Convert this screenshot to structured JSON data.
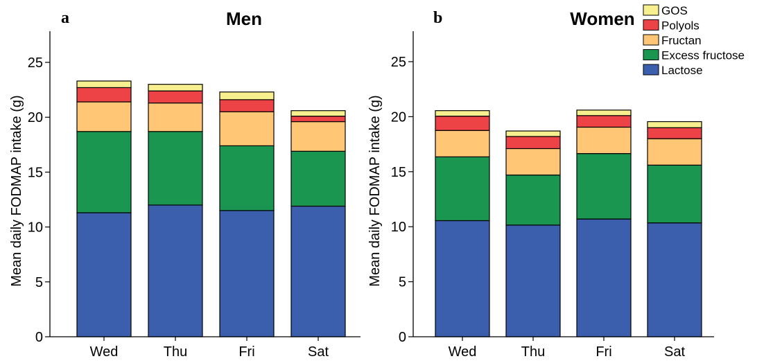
{
  "chart_data": [
    {
      "type": "bar",
      "stacked": true,
      "panel_label": "a",
      "title": "Men",
      "ylabel": "Mean daily FODMAP intake (g)",
      "xlabel": "",
      "categories": [
        "Wed",
        "Thu",
        "Fri",
        "Sat"
      ],
      "ylim": [
        0,
        28
      ],
      "yticks": [
        0,
        5,
        10,
        15,
        20,
        25
      ],
      "grid": false,
      "series": [
        {
          "name": "Lactose",
          "color": "#3b5fad",
          "values": [
            11.3,
            12.0,
            11.5,
            11.9
          ]
        },
        {
          "name": "Excess fructose",
          "color": "#1b9650",
          "values": [
            7.4,
            6.7,
            5.9,
            5.0
          ]
        },
        {
          "name": "Fructan",
          "color": "#fec675",
          "values": [
            2.7,
            2.6,
            3.1,
            2.7
          ]
        },
        {
          "name": "Polyols",
          "color": "#ee4346",
          "values": [
            1.3,
            1.1,
            1.1,
            0.5
          ]
        },
        {
          "name": "GOS",
          "color": "#f8f08e",
          "values": [
            0.6,
            0.6,
            0.7,
            0.5
          ]
        }
      ]
    },
    {
      "type": "bar",
      "stacked": true,
      "panel_label": "b",
      "title": "Women",
      "ylabel": "Mean daily FODMAP intake (g)",
      "xlabel": "",
      "categories": [
        "Wed",
        "Thu",
        "Fri",
        "Sat"
      ],
      "ylim": [
        0,
        28
      ],
      "yticks": [
        0,
        5,
        10,
        15,
        20,
        25
      ],
      "grid": false,
      "legend_position": "top-right",
      "series": [
        {
          "name": "Lactose",
          "color": "#3b5fad",
          "values": [
            10.55,
            10.15,
            10.7,
            10.35
          ]
        },
        {
          "name": "Excess fructose",
          "color": "#1b9650",
          "values": [
            5.8,
            4.55,
            5.95,
            5.25
          ]
        },
        {
          "name": "Fructan",
          "color": "#fec675",
          "values": [
            2.4,
            2.4,
            2.4,
            2.4
          ]
        },
        {
          "name": "Polyols",
          "color": "#ee4346",
          "values": [
            1.3,
            1.1,
            1.05,
            1.0
          ]
        },
        {
          "name": "GOS",
          "color": "#f8f08e",
          "values": [
            0.5,
            0.5,
            0.5,
            0.55
          ]
        }
      ]
    }
  ],
  "legend": {
    "items": [
      {
        "name": "GOS",
        "color": "#f8f08e"
      },
      {
        "name": "Polyols",
        "color": "#ee4346"
      },
      {
        "name": "Fructan",
        "color": "#fec675"
      },
      {
        "name": "Excess fructose",
        "color": "#1b9650"
      },
      {
        "name": "Lactose",
        "color": "#3b5fad"
      }
    ]
  }
}
